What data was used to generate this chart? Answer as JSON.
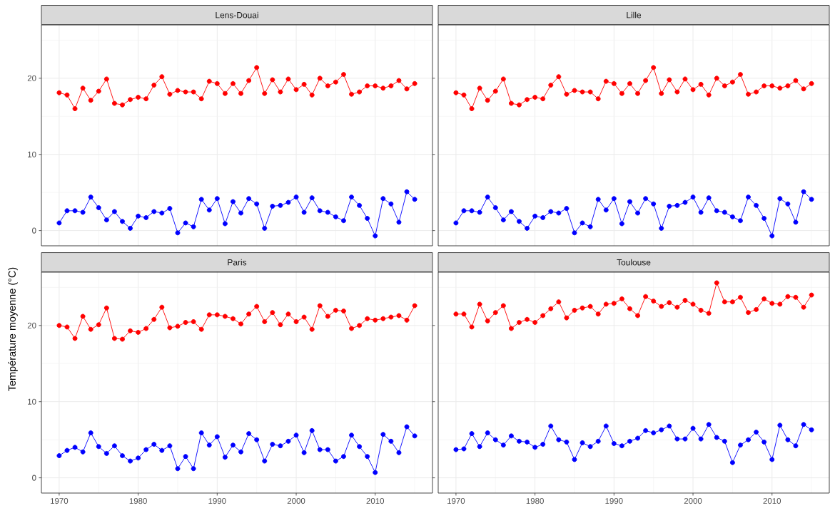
{
  "chart_data": [
    {
      "type": "line",
      "title": "Lens-Douai",
      "x": [
        1970,
        1971,
        1972,
        1973,
        1974,
        1975,
        1976,
        1977,
        1978,
        1979,
        1980,
        1981,
        1982,
        1983,
        1984,
        1985,
        1986,
        1987,
        1988,
        1989,
        1990,
        1991,
        1992,
        1993,
        1994,
        1995,
        1996,
        1997,
        1998,
        1999,
        2000,
        2001,
        2002,
        2003,
        2004,
        2005,
        2006,
        2007,
        2008,
        2009,
        2010,
        2011,
        2012,
        2013,
        2014,
        2015
      ],
      "xlim": [
        1967.75,
        2017.25
      ],
      "ylim": [
        -2,
        27
      ],
      "xticks": [
        1970,
        1980,
        1990,
        2000,
        2010
      ],
      "yticks": [
        0,
        10,
        20
      ],
      "grid": true,
      "marker": "circle",
      "line_style": "solid",
      "tick_labels": "y",
      "series": [
        {
          "color": "#ff0000",
          "values": [
            18.1,
            17.8,
            16.0,
            18.7,
            17.1,
            18.3,
            19.9,
            16.7,
            16.5,
            17.2,
            17.5,
            17.3,
            19.1,
            20.2,
            17.9,
            18.4,
            18.2,
            18.2,
            17.3,
            19.6,
            19.3,
            18.0,
            19.3,
            18.0,
            19.7,
            21.4,
            18.0,
            19.8,
            18.2,
            19.9,
            18.5,
            19.2,
            17.8,
            20.0,
            19.0,
            19.5,
            20.5,
            17.9,
            18.2,
            19.0,
            19.0,
            18.7,
            19.0,
            19.7,
            18.6,
            19.3
          ]
        },
        {
          "color": "#0000ff",
          "values": [
            1.0,
            2.6,
            2.6,
            2.4,
            4.4,
            3.0,
            1.4,
            2.5,
            1.2,
            0.3,
            1.9,
            1.7,
            2.5,
            2.3,
            2.9,
            -0.3,
            1.0,
            0.5,
            4.1,
            2.7,
            4.2,
            0.9,
            3.8,
            2.3,
            4.2,
            3.5,
            0.3,
            3.2,
            3.3,
            3.7,
            4.4,
            2.4,
            4.3,
            2.6,
            2.4,
            1.8,
            1.3,
            4.4,
            3.3,
            1.6,
            -0.7,
            4.2,
            3.5,
            1.1,
            5.1,
            4.1
          ]
        }
      ]
    },
    {
      "type": "line",
      "title": "Lille",
      "x": [
        1970,
        1971,
        1972,
        1973,
        1974,
        1975,
        1976,
        1977,
        1978,
        1979,
        1980,
        1981,
        1982,
        1983,
        1984,
        1985,
        1986,
        1987,
        1988,
        1989,
        1990,
        1991,
        1992,
        1993,
        1994,
        1995,
        1996,
        1997,
        1998,
        1999,
        2000,
        2001,
        2002,
        2003,
        2004,
        2005,
        2006,
        2007,
        2008,
        2009,
        2010,
        2011,
        2012,
        2013,
        2014,
        2015
      ],
      "xlim": [
        1967.75,
        2017.25
      ],
      "ylim": [
        -2,
        27
      ],
      "xticks": [
        1970,
        1980,
        1990,
        2000,
        2010
      ],
      "yticks": [
        0,
        10,
        20
      ],
      "grid": true,
      "marker": "circle",
      "line_style": "solid",
      "tick_labels": false,
      "series": [
        {
          "color": "#ff0000",
          "values": [
            18.1,
            17.8,
            16.0,
            18.7,
            17.1,
            18.3,
            19.9,
            16.7,
            16.5,
            17.2,
            17.5,
            17.3,
            19.1,
            20.2,
            17.9,
            18.4,
            18.2,
            18.2,
            17.3,
            19.6,
            19.3,
            18.0,
            19.3,
            18.0,
            19.7,
            21.4,
            18.0,
            19.8,
            18.2,
            19.9,
            18.5,
            19.2,
            17.8,
            20.0,
            19.0,
            19.5,
            20.5,
            17.9,
            18.2,
            19.0,
            19.0,
            18.7,
            19.0,
            19.7,
            18.6,
            19.3
          ]
        },
        {
          "color": "#0000ff",
          "values": [
            1.0,
            2.6,
            2.6,
            2.4,
            4.4,
            3.0,
            1.4,
            2.5,
            1.2,
            0.3,
            1.9,
            1.7,
            2.5,
            2.3,
            2.9,
            -0.3,
            1.0,
            0.5,
            4.1,
            2.7,
            4.2,
            0.9,
            3.8,
            2.3,
            4.2,
            3.5,
            0.3,
            3.2,
            3.3,
            3.7,
            4.4,
            2.4,
            4.3,
            2.6,
            2.4,
            1.8,
            1.3,
            4.4,
            3.3,
            1.6,
            -0.7,
            4.2,
            3.5,
            1.1,
            5.1,
            4.1
          ]
        }
      ]
    },
    {
      "type": "line",
      "title": "Paris",
      "ylabel": "Température moyenne (°C)",
      "x": [
        1970,
        1971,
        1972,
        1973,
        1974,
        1975,
        1976,
        1977,
        1978,
        1979,
        1980,
        1981,
        1982,
        1983,
        1984,
        1985,
        1986,
        1987,
        1988,
        1989,
        1990,
        1991,
        1992,
        1993,
        1994,
        1995,
        1996,
        1997,
        1998,
        1999,
        2000,
        2001,
        2002,
        2003,
        2004,
        2005,
        2006,
        2007,
        2008,
        2009,
        2010,
        2011,
        2012,
        2013,
        2014,
        2015
      ],
      "xlim": [
        1967.75,
        2017.25
      ],
      "ylim": [
        -2,
        27
      ],
      "xticks": [
        1970,
        1980,
        1990,
        2000,
        2010
      ],
      "yticks": [
        0,
        10,
        20
      ],
      "grid": true,
      "marker": "circle",
      "line_style": "solid",
      "series": [
        {
          "color": "#ff0000",
          "values": [
            20.0,
            19.8,
            18.3,
            21.2,
            19.5,
            20.1,
            22.3,
            18.3,
            18.2,
            19.3,
            19.1,
            19.6,
            20.8,
            22.4,
            19.7,
            19.9,
            20.4,
            20.5,
            19.5,
            21.4,
            21.4,
            21.2,
            20.9,
            20.2,
            21.5,
            22.5,
            20.5,
            21.7,
            20.1,
            21.5,
            20.5,
            21.1,
            19.5,
            22.6,
            21.2,
            22.0,
            21.9,
            19.6,
            20.0,
            20.9,
            20.7,
            20.9,
            21.1,
            21.3,
            20.7,
            22.6
          ]
        },
        {
          "color": "#0000ff",
          "values": [
            2.9,
            3.6,
            4.0,
            3.4,
            5.9,
            4.1,
            3.2,
            4.2,
            2.9,
            2.2,
            2.6,
            3.7,
            4.4,
            3.6,
            4.2,
            1.2,
            2.8,
            1.2,
            5.9,
            4.3,
            5.4,
            2.7,
            4.3,
            3.4,
            5.8,
            5.0,
            2.2,
            4.4,
            4.2,
            4.8,
            5.6,
            3.3,
            6.2,
            3.7,
            3.7,
            2.2,
            2.8,
            5.6,
            4.1,
            2.8,
            0.7,
            5.7,
            4.8,
            3.3,
            6.7,
            5.5
          ]
        }
      ]
    },
    {
      "type": "line",
      "title": "Toulouse",
      "x": [
        1970,
        1971,
        1972,
        1973,
        1974,
        1975,
        1976,
        1977,
        1978,
        1979,
        1980,
        1981,
        1982,
        1983,
        1984,
        1985,
        1986,
        1987,
        1988,
        1989,
        1990,
        1991,
        1992,
        1993,
        1994,
        1995,
        1996,
        1997,
        1998,
        1999,
        2000,
        2001,
        2002,
        2003,
        2004,
        2005,
        2006,
        2007,
        2008,
        2009,
        2010,
        2011,
        2012,
        2013,
        2014,
        2015
      ],
      "xlim": [
        1967.75,
        2017.25
      ],
      "ylim": [
        -2,
        27
      ],
      "xticks": [
        1970,
        1980,
        1990,
        2000,
        2010
      ],
      "yticks": [
        0,
        10,
        20
      ],
      "grid": true,
      "marker": "circle",
      "line_style": "solid",
      "tick_labels": "x",
      "series": [
        {
          "color": "#ff0000",
          "values": [
            21.5,
            21.5,
            19.8,
            22.8,
            20.6,
            21.7,
            22.6,
            19.6,
            20.4,
            20.8,
            20.4,
            21.3,
            22.2,
            23.1,
            21.0,
            22.0,
            22.3,
            22.5,
            21.5,
            22.8,
            22.9,
            23.5,
            22.2,
            21.3,
            23.8,
            23.2,
            22.5,
            23.0,
            22.4,
            23.3,
            22.8,
            22.0,
            21.6,
            25.6,
            23.1,
            23.1,
            23.7,
            21.7,
            22.1,
            23.5,
            22.9,
            22.8,
            23.8,
            23.7,
            22.4,
            24.0
          ]
        },
        {
          "color": "#0000ff",
          "values": [
            3.7,
            3.8,
            5.8,
            4.1,
            5.9,
            5.0,
            4.3,
            5.5,
            4.8,
            4.7,
            4.0,
            4.4,
            6.8,
            5.0,
            4.7,
            2.4,
            4.6,
            4.1,
            4.8,
            6.8,
            4.5,
            4.2,
            4.8,
            5.2,
            6.2,
            5.9,
            6.3,
            6.8,
            5.1,
            5.1,
            6.5,
            5.1,
            7.0,
            5.3,
            4.8,
            2.0,
            4.3,
            5.0,
            6.0,
            4.7,
            2.4,
            6.9,
            5.0,
            4.2,
            7.0,
            6.3
          ]
        }
      ]
    }
  ]
}
